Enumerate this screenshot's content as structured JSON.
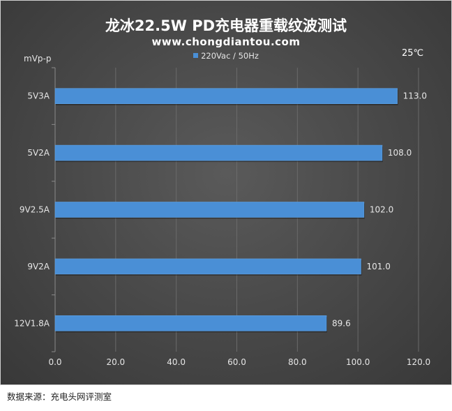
{
  "header": {
    "title": "龙冰22.5W PD充电器重载纹波测试",
    "website": "www.chongdiantou.com",
    "temperature": "25℃",
    "unit": "mVp-p"
  },
  "footer": {
    "source": "数据来源：充电头网评测室"
  },
  "colors": {
    "bar": "#4a8fd6",
    "background": "#474747",
    "grid": "#6a6a6a",
    "text": "#e6e6e6"
  },
  "chart_data": {
    "type": "bar",
    "orientation": "horizontal",
    "title": "龙冰22.5W PD充电器重载纹波测试",
    "subtitle": "www.chongdiantou.com",
    "ylabel": "mVp-p",
    "categories": [
      "5V3A",
      "5V2A",
      "9V2.5A",
      "9V2A",
      "12V1.8A"
    ],
    "series": [
      {
        "name": "220Vac / 50Hz",
        "values": [
          113.0,
          108.0,
          102.0,
          101.0,
          89.6
        ],
        "labels": [
          "113.0",
          "108.0",
          "102.0",
          "101.0",
          "89.6"
        ]
      }
    ],
    "xlim": [
      0,
      120
    ],
    "xticks": [
      "0.0",
      "20.0",
      "40.0",
      "60.0",
      "80.0",
      "100.0",
      "120.0"
    ],
    "grid": true,
    "legend": "top-center"
  }
}
